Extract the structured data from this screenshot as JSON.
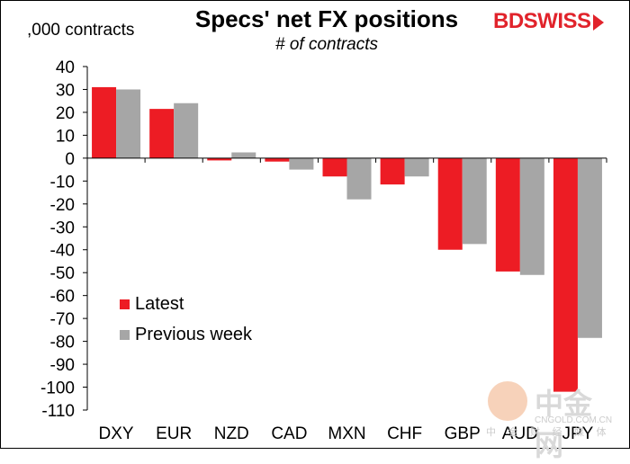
{
  "header": {
    "title": "Specs' net FX positions",
    "subtitle": "# of contracts",
    "y_unit": ",000 contracts"
  },
  "logo": {
    "part1": "BD",
    "part2": "SWISS"
  },
  "watermark": {
    "chinese": "中金网",
    "url": "CNGOLD.COM.CN",
    "sub": "中 金 财 经 媒 体"
  },
  "legend": [
    {
      "label": "Latest",
      "color": "#ed1c24"
    },
    {
      "label": "Previous week",
      "color": "#a6a6a6"
    }
  ],
  "chart_data": {
    "type": "bar",
    "title": "Specs' net FX positions",
    "subtitle": "# of contracts",
    "ylabel": ",000 contracts",
    "xlabel": "",
    "ylim": [
      -110,
      40
    ],
    "yticks": [
      40,
      30,
      20,
      10,
      0,
      -10,
      -20,
      -30,
      -40,
      -50,
      -60,
      -70,
      -80,
      -90,
      -100,
      -110
    ],
    "categories": [
      "DXY",
      "EUR",
      "NZD",
      "CAD",
      "MXN",
      "CHF",
      "GBP",
      "AUD",
      "JPY"
    ],
    "series": [
      {
        "name": "Latest",
        "color": "#ed1c24",
        "values": [
          31,
          21.5,
          -1,
          -1.5,
          -8,
          -11.5,
          -40,
          -49.5,
          -102
        ]
      },
      {
        "name": "Previous week",
        "color": "#a6a6a6",
        "values": [
          30,
          24,
          2.5,
          -5,
          -18,
          -8,
          -37.5,
          -51,
          -78.5
        ]
      }
    ],
    "grid": false,
    "legend_position": "lower-left"
  }
}
